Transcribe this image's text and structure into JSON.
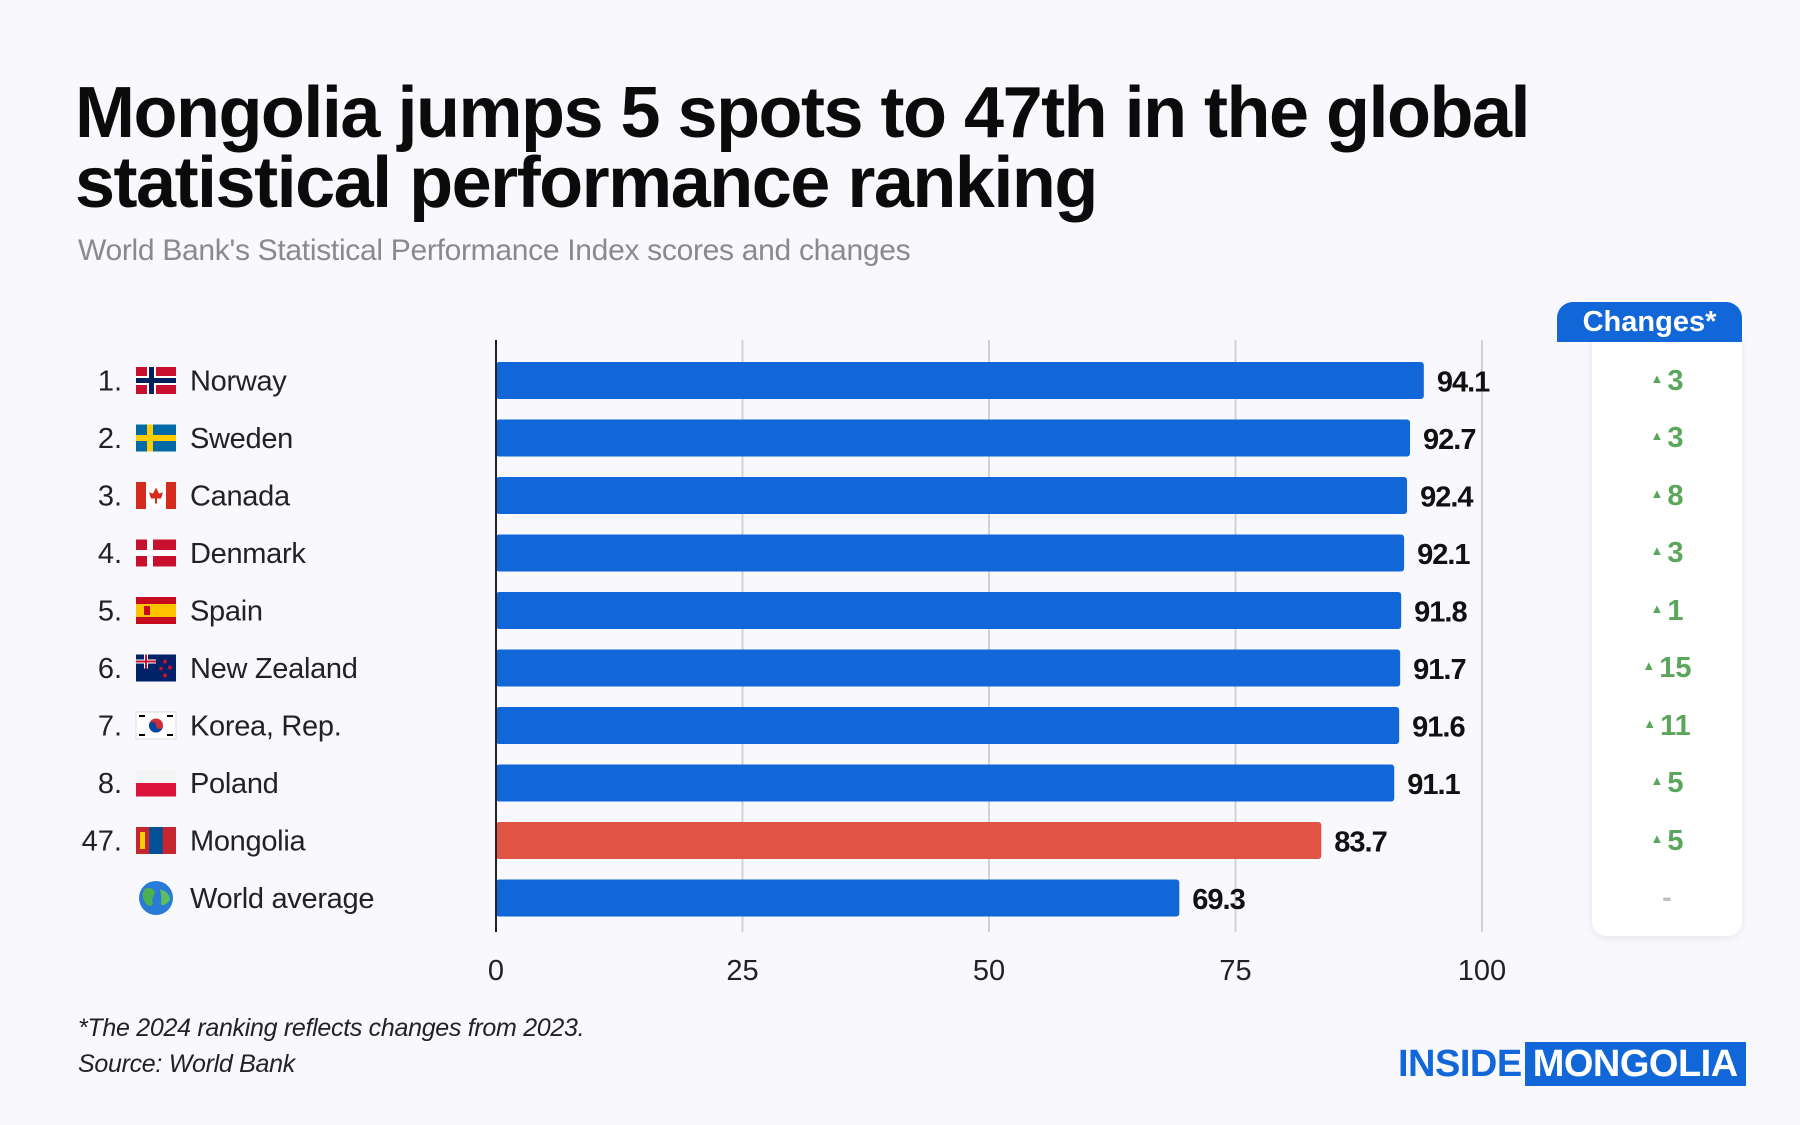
{
  "title_lines": [
    "Mongolia jumps 5 spots to 47th in the global",
    "statistical performance ranking"
  ],
  "subtitle": "World Bank's Statistical Performance Index scores and changes",
  "changes_header": "Changes*",
  "footnote": "*The 2024 ranking reflects changes from 2023.",
  "source": "Source: World Bank",
  "logo": {
    "part1": "INSIDE",
    "part2": "MONGOLIA"
  },
  "colors": {
    "bar": "#1167d8",
    "highlight": "#e05443",
    "up": "#5aa65a",
    "accent": "#1167d8"
  },
  "rows": [
    {
      "rank": "1.",
      "country": "Norway",
      "flag": "norway-flag-icon",
      "change": "3"
    },
    {
      "rank": "2.",
      "country": "Sweden",
      "flag": "sweden-flag-icon",
      "change": "3"
    },
    {
      "rank": "3.",
      "country": "Canada",
      "flag": "canada-flag-icon",
      "change": "8"
    },
    {
      "rank": "4.",
      "country": "Denmark",
      "flag": "denmark-flag-icon",
      "change": "3"
    },
    {
      "rank": "5.",
      "country": "Spain",
      "flag": "spain-flag-icon",
      "change": "1"
    },
    {
      "rank": "6.",
      "country": "New Zealand",
      "flag": "new-zealand-flag-icon",
      "change": "15"
    },
    {
      "rank": "7.",
      "country": "Korea, Rep.",
      "flag": "korea-flag-icon",
      "change": "11"
    },
    {
      "rank": "8.",
      "country": "Poland",
      "flag": "poland-flag-icon",
      "change": "5"
    },
    {
      "rank": "47.",
      "country": "Mongolia",
      "flag": "mongolia-flag-icon",
      "change": "5"
    },
    {
      "rank": "",
      "country": "World average",
      "flag": "globe-icon",
      "change": "-"
    }
  ],
  "chart_data": {
    "type": "bar",
    "orientation": "horizontal",
    "categories": [
      "Norway",
      "Sweden",
      "Canada",
      "Denmark",
      "Spain",
      "New Zealand",
      "Korea, Rep.",
      "Poland",
      "Mongolia",
      "World average"
    ],
    "values": [
      94.1,
      92.7,
      92.4,
      92.1,
      91.8,
      91.7,
      91.6,
      91.1,
      83.7,
      69.3
    ],
    "value_labels": [
      "94.1",
      "92.7",
      "92.4",
      "92.1",
      "91.8",
      "91.7",
      "91.6",
      "91.1",
      "83.7",
      "69.3"
    ],
    "highlight": "Mongolia",
    "xlim": [
      0,
      100
    ],
    "xticks": [
      0,
      25,
      50,
      75,
      100
    ],
    "xtick_labels": [
      "0",
      "25",
      "50",
      "75",
      "100"
    ],
    "grid": true
  }
}
